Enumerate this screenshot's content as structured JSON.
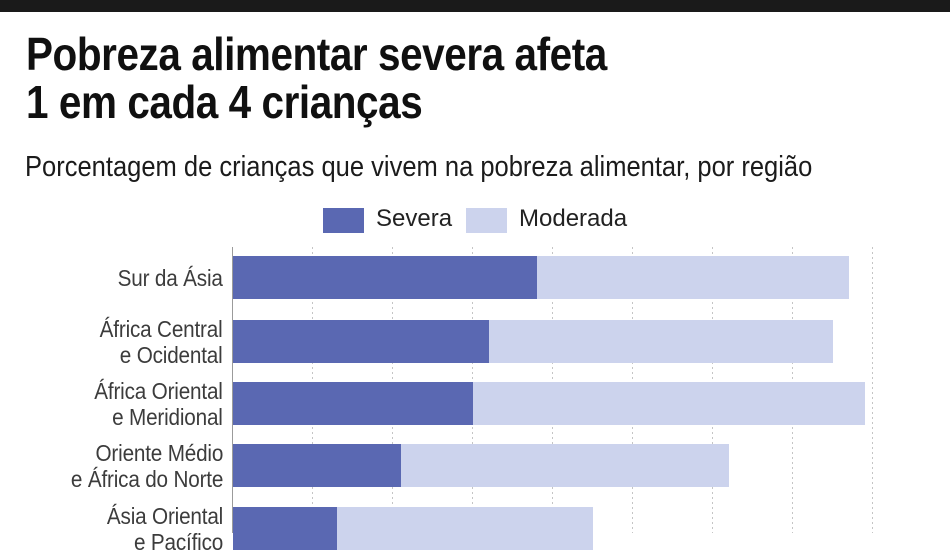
{
  "page": {
    "title_line1": "Pobreza alimentar severa afeta",
    "title_line2": "1 em cada 4 crianças",
    "subtitle": "Porcentagem de crianças que vivem na pobreza alimentar, por região"
  },
  "legend": {
    "items": [
      {
        "label": "Severa",
        "color": "#5a68b2"
      },
      {
        "label": "Moderada",
        "color": "#ccd3ed"
      }
    ]
  },
  "chart_data": {
    "type": "bar",
    "orientation": "horizontal",
    "stacked": true,
    "unit": "percent of children",
    "title": "Porcentagem de crianças que vivem na pobreza alimentar, por região",
    "xlabel": "",
    "ylabel": "",
    "xlim": [
      0,
      80
    ],
    "grid": true,
    "grid_step_percent": 10,
    "gridlines_percent": [
      10,
      20,
      30,
      40,
      50,
      60,
      70,
      80
    ],
    "legend_position": "top",
    "categories": [
      "Sur da Ásia",
      "África Central e Ocidental",
      "África Oriental e Meridional",
      "Oriente Médio e África do Norte",
      "Ásia Oriental e Pacífico"
    ],
    "category_label_lines": [
      [
        "Sur da Ásia"
      ],
      [
        "África Central",
        "e Ocidental"
      ],
      [
        "África Oriental",
        "e Meridional"
      ],
      [
        "Oriente Médio",
        "e África do Norte"
      ],
      [
        "Ásia Oriental",
        "e Pacífico"
      ]
    ],
    "series": [
      {
        "name": "Severa",
        "color": "#5a68b2",
        "values": [
          38,
          32,
          30,
          21,
          13
        ]
      },
      {
        "name": "Moderada",
        "color": "#ccd3ed",
        "values": [
          39,
          43,
          49,
          41,
          32
        ]
      }
    ],
    "totals_percent": [
      77,
      75,
      79,
      62,
      45
    ]
  },
  "colors": {
    "top_bar": "#1a1a1a",
    "severe": "#5a68b2",
    "moderate": "#ccd3ed",
    "axis": "#9b9b9b",
    "gridline": "#c5c5c5",
    "label_text": "#3c3c3c"
  }
}
